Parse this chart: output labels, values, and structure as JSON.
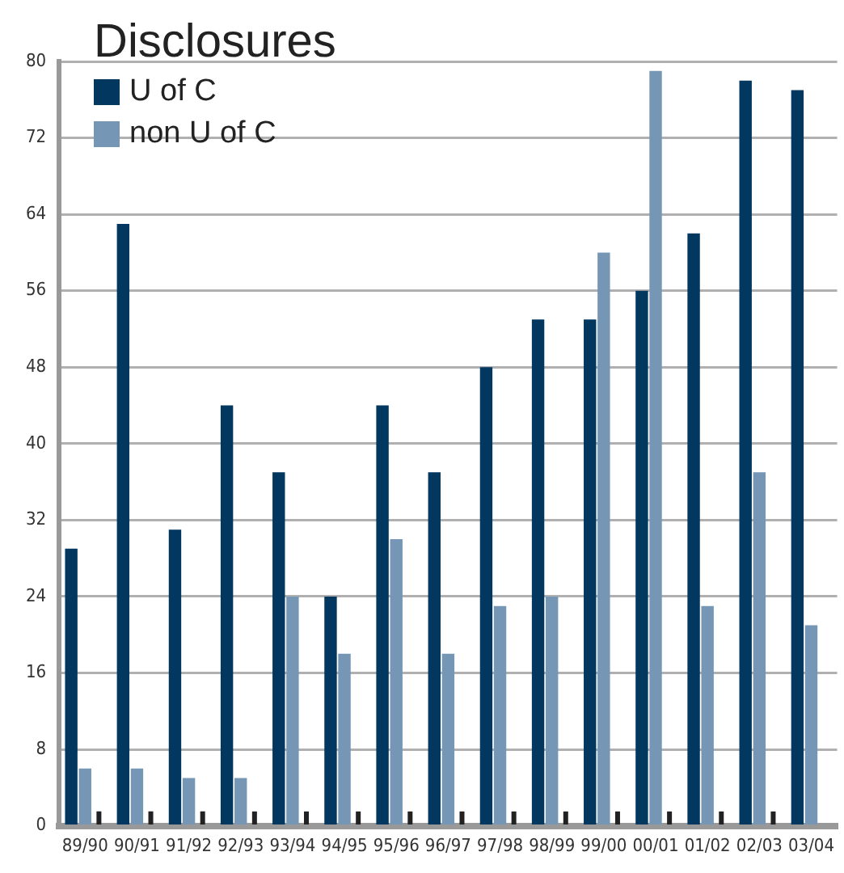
{
  "chart_data": {
    "type": "bar",
    "title": "Disclosures",
    "categories": [
      "89/90",
      "90/91",
      "91/92",
      "92/93",
      "93/94",
      "94/95",
      "95/96",
      "96/97",
      "97/98",
      "98/99",
      "99/00",
      "00/01",
      "01/02",
      "02/03",
      "03/04"
    ],
    "series": [
      {
        "name": "U of C",
        "color": "#02375f",
        "values": [
          29,
          63,
          31,
          44,
          37,
          24,
          44,
          37,
          48,
          53,
          53,
          56,
          62,
          78,
          77
        ]
      },
      {
        "name": "non U of C",
        "color": "#7596b4",
        "values": [
          6,
          6,
          5,
          5,
          24,
          18,
          30,
          18,
          23,
          24,
          60,
          79,
          23,
          37,
          21
        ]
      },
      {
        "color": "#222222",
        "values": [
          1.5,
          1.5,
          1.5,
          1.5,
          1.5,
          1.5,
          1.5,
          1.5,
          1.5,
          1.5,
          1.5,
          1.5,
          1.5,
          1.5,
          null
        ]
      }
    ],
    "ylim": [
      0,
      80
    ],
    "yticks": [
      0,
      8,
      16,
      24,
      32,
      40,
      48,
      56,
      64,
      72,
      80
    ],
    "grid": "y",
    "legend": "top left"
  }
}
